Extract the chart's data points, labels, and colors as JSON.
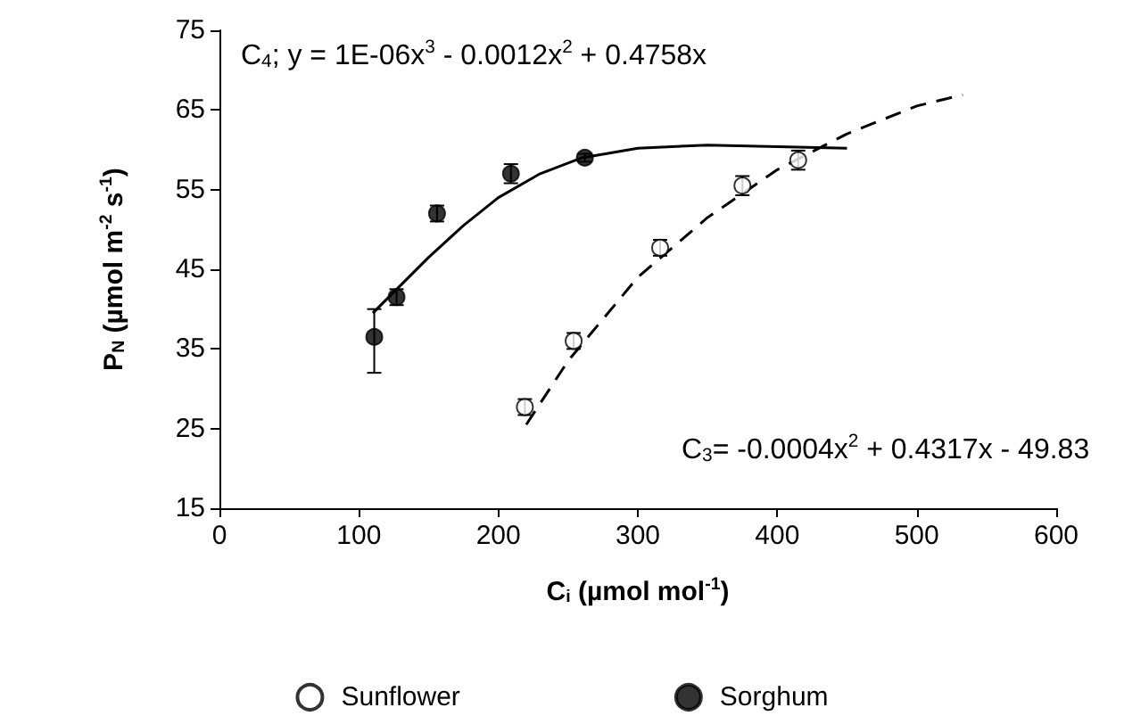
{
  "chart_data": {
    "type": "scatter",
    "xlabel": "C$_{i}$ (µmol mol$^{-1}$)",
    "ylabel": "P$_{N}$ (µmol m$^{-2}$ s$^{-1}$)",
    "annotations": [
      "C$_{4}$; y = 1E-06x$^{3}$ - 0.0012x$^{2}$ + 0.4758x",
      "C$_{3}$= -0.0004x$^{2}$ + 0.4317x - 49.83"
    ],
    "xlim": [
      0,
      600
    ],
    "xticks": [
      0,
      100,
      200,
      300,
      400,
      500,
      600
    ],
    "ylim": [
      15,
      75
    ],
    "yticks": [
      15,
      25,
      35,
      45,
      55,
      65,
      75
    ],
    "grid": false,
    "legend": "bottom",
    "marker": "circle",
    "series": [
      {
        "name": "Sunflower",
        "color": "#ffffff",
        "x": [
          219,
          254,
          316,
          375,
          415
        ],
        "values": [
          27.7,
          36,
          47.7,
          55.5,
          58.7
        ],
        "errors": [
          1,
          1,
          1,
          1.2,
          1.2
        ]
      },
      {
        "name": "Sorghum",
        "color": "#000000",
        "x": [
          111,
          127,
          156,
          209,
          262
        ],
        "values": [
          36.5,
          41.5,
          52,
          57,
          59
        ],
        "errors": [
          [
            32,
            40
          ],
          1,
          1,
          1.2,
          0.5
        ]
      },
      {
        "type": "line",
        "color": "#000000",
        "line_style": "solid",
        "marker": "none",
        "x": [
          110,
          130,
          150,
          175,
          200,
          230,
          260,
          300,
          350,
          400,
          450
        ],
        "values": [
          39.5,
          43,
          46.5,
          50.5,
          54,
          57,
          59,
          60.2,
          60.6,
          60.4,
          60.2
        ]
      },
      {
        "type": "line",
        "color": "#000000",
        "line_style": "dashed",
        "marker": "none",
        "x": [
          220,
          250,
          300,
          350,
          400,
          450,
          500,
          533
        ],
        "values": [
          25.5,
          33.5,
          44,
          51.5,
          57.5,
          62,
          65.5,
          66.9
        ]
      }
    ]
  }
}
